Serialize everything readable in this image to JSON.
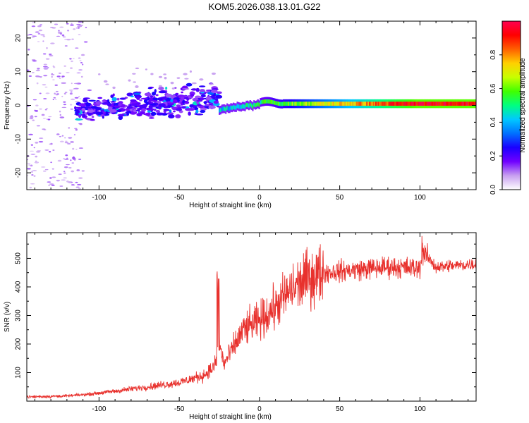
{
  "title": "KOM5.2026.038.13.01.G22",
  "chart_data": [
    {
      "type": "heatmap",
      "name": "spectrogram",
      "xlabel": "Height of straight line (km)",
      "ylabel": "Frequency (Hz)",
      "xlim": [
        -145,
        135
      ],
      "ylim": [
        -25,
        25
      ],
      "xticks": [
        -100,
        -50,
        0,
        50,
        100
      ],
      "yticks": [
        -20,
        -10,
        0,
        10,
        20
      ],
      "tick_labels_x": [
        "-100",
        "-50",
        "0",
        "50",
        "100"
      ],
      "tick_labels_y": [
        "-20",
        "-10",
        "0",
        "10",
        "20"
      ],
      "description_series": [
        {
          "name": "noise scatter",
          "x_range": [
            -145,
            -110
          ],
          "freq_range": [
            -25,
            25
          ],
          "amplitude": 0.05
        },
        {
          "name": "broad blobs",
          "x_range": [
            -115,
            -25
          ],
          "freq_range": [
            -8,
            10
          ],
          "amplitude": 0.2
        },
        {
          "name": "narrow line",
          "x_range": [
            -25,
            135
          ],
          "freq_center": 0.5,
          "amplitude_start": 0.4,
          "amplitude_end": 0.95
        }
      ]
    },
    {
      "type": "line",
      "name": "snr",
      "xlabel": "Height of straight line (km)",
      "ylabel": "SNR (v/v)",
      "xlim": [
        -145,
        135
      ],
      "ylim": [
        0,
        590
      ],
      "xticks": [
        -100,
        -50,
        0,
        50,
        100
      ],
      "yticks": [
        100,
        200,
        300,
        400,
        500
      ],
      "tick_labels_x": [
        "-100",
        "-50",
        "0",
        "50",
        "100"
      ],
      "tick_labels_y": [
        "100",
        "200",
        "300",
        "400",
        "500"
      ],
      "color": "#e8312d",
      "trend": {
        "x": [
          -145,
          -120,
          -105,
          -90,
          -70,
          -50,
          -35,
          -28,
          -25,
          -22,
          -18,
          -10,
          0,
          10,
          20,
          30,
          40,
          60,
          80,
          100,
          102,
          110,
          135
        ],
        "y": [
          15,
          18,
          25,
          35,
          50,
          65,
          90,
          120,
          200,
          130,
          170,
          250,
          280,
          330,
          390,
          430,
          450,
          460,
          470,
          465,
          520,
          470,
          480
        ]
      }
    }
  ],
  "colorbar": {
    "label": "Normalized spectral amplitude",
    "range": [
      0,
      1
    ],
    "ticks": [
      0.0,
      0.2,
      0.4,
      0.6,
      0.8
    ],
    "tick_labels": [
      "0.0",
      "0.2",
      "0.4",
      "0.6",
      "0.8"
    ],
    "stops": [
      "#ffffff",
      "#c8a0f0",
      "#7000ff",
      "#1a00ff",
      "#0070ff",
      "#00c8ff",
      "#00ff80",
      "#40ff00",
      "#c8ff00",
      "#ffd000",
      "#ff6000",
      "#ff0000",
      "#ff0050"
    ]
  }
}
